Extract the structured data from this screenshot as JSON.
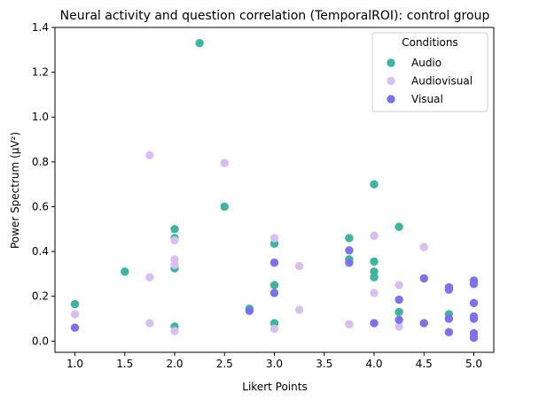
{
  "chart_data": {
    "type": "scatter",
    "title": "Neural activity and question correlation (TemporalROI): control group",
    "xlabel": "Likert Points",
    "ylabel": "Power Spectrum (µV²)",
    "xlim": [
      0.8,
      5.2
    ],
    "ylim": [
      -0.05,
      1.4
    ],
    "xticks": [
      1.0,
      1.5,
      2.0,
      2.5,
      3.0,
      3.5,
      4.0,
      4.5,
      5.0
    ],
    "xtick_labels": [
      "1.0",
      "1.5",
      "2.0",
      "2.5",
      "3.0",
      "3.5",
      "4.0",
      "4.5",
      "5.0"
    ],
    "yticks": [
      0.0,
      0.2,
      0.4,
      0.6,
      0.8,
      1.0,
      1.2,
      1.4
    ],
    "ytick_labels": [
      "0.0",
      "0.2",
      "0.4",
      "0.6",
      "0.8",
      "1.0",
      "1.2",
      "1.4"
    ],
    "grid": false,
    "legend": {
      "title": "Conditions",
      "position": "top-right"
    },
    "series": [
      {
        "name": "Audio",
        "color": "#3db5a0",
        "points": [
          [
            1.0,
            0.165
          ],
          [
            1.5,
            0.31
          ],
          [
            2.0,
            0.5
          ],
          [
            2.0,
            0.46
          ],
          [
            2.0,
            0.325
          ],
          [
            2.0,
            0.065
          ],
          [
            2.25,
            1.33
          ],
          [
            2.5,
            0.6
          ],
          [
            2.75,
            0.145
          ],
          [
            3.0,
            0.435
          ],
          [
            3.0,
            0.25
          ],
          [
            3.0,
            0.08
          ],
          [
            3.75,
            0.46
          ],
          [
            3.75,
            0.365
          ],
          [
            4.0,
            0.7
          ],
          [
            4.0,
            0.355
          ],
          [
            4.0,
            0.31
          ],
          [
            4.0,
            0.285
          ],
          [
            4.25,
            0.51
          ],
          [
            4.25,
            0.13
          ],
          [
            4.75,
            0.12
          ]
        ]
      },
      {
        "name": "Audiovisual",
        "color": "#d8bff0",
        "points": [
          [
            1.0,
            0.12
          ],
          [
            1.75,
            0.83
          ],
          [
            1.75,
            0.285
          ],
          [
            1.75,
            0.08
          ],
          [
            2.0,
            0.45
          ],
          [
            2.0,
            0.365
          ],
          [
            2.0,
            0.34
          ],
          [
            2.0,
            0.045
          ],
          [
            2.5,
            0.795
          ],
          [
            3.0,
            0.46
          ],
          [
            3.0,
            0.055
          ],
          [
            3.25,
            0.335
          ],
          [
            3.25,
            0.14
          ],
          [
            3.75,
            0.075
          ],
          [
            4.0,
            0.47
          ],
          [
            4.0,
            0.215
          ],
          [
            4.25,
            0.25
          ],
          [
            4.25,
            0.065
          ],
          [
            4.5,
            0.42
          ]
        ]
      },
      {
        "name": "Visual",
        "color": "#7b72ee",
        "points": [
          [
            1.0,
            0.06
          ],
          [
            2.75,
            0.135
          ],
          [
            3.0,
            0.35
          ],
          [
            3.0,
            0.215
          ],
          [
            3.75,
            0.405
          ],
          [
            3.75,
            0.35
          ],
          [
            4.0,
            0.08
          ],
          [
            4.25,
            0.185
          ],
          [
            4.25,
            0.095
          ],
          [
            4.5,
            0.28
          ],
          [
            4.5,
            0.08
          ],
          [
            4.75,
            0.24
          ],
          [
            4.75,
            0.23
          ],
          [
            4.75,
            0.1
          ],
          [
            4.75,
            0.04
          ],
          [
            5.0,
            0.27
          ],
          [
            5.0,
            0.255
          ],
          [
            5.0,
            0.17
          ],
          [
            5.0,
            0.11
          ],
          [
            5.0,
            0.1
          ],
          [
            5.0,
            0.035
          ],
          [
            5.0,
            0.015
          ]
        ]
      }
    ]
  }
}
